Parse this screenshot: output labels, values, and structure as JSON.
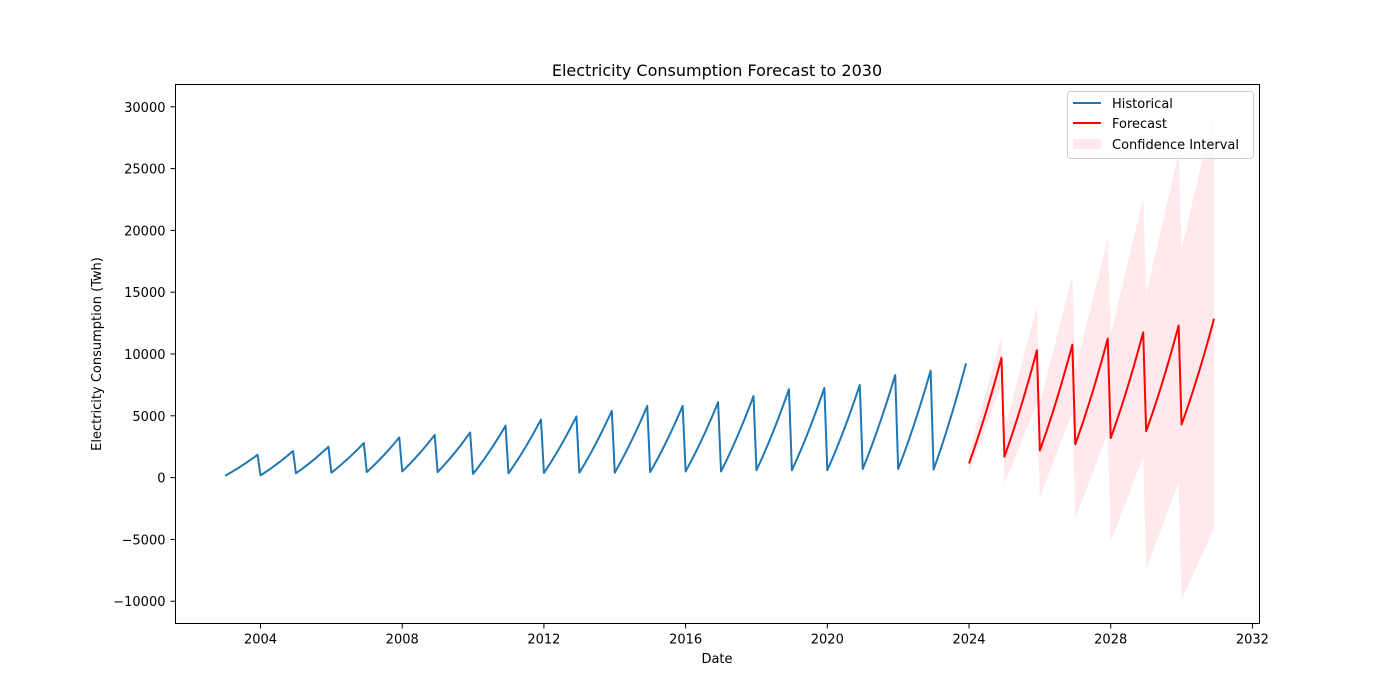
{
  "chart_data": {
    "type": "line",
    "title": "Electricity Consumption Forecast to 2030",
    "xlabel": "Date",
    "ylabel": "Electricity Consumption (Twh)",
    "xlim": [
      2001.6,
      2032.2
    ],
    "ylim": [
      -11800,
      31800
    ],
    "xticks": [
      2004,
      2008,
      2012,
      2016,
      2020,
      2024,
      2028,
      2032
    ],
    "yticks": [
      -10000,
      -5000,
      0,
      5000,
      10000,
      15000,
      20000,
      25000,
      30000
    ],
    "legend": {
      "position": "top-right",
      "entries": [
        "Historical",
        "Forecast",
        "Confidence Interval"
      ]
    },
    "grid": false,
    "colors": {
      "historical": "#1f77b4",
      "forecast": "#ff0000",
      "confidence": "#ffc0cb"
    },
    "series": [
      {
        "name": "Historical",
        "cycles": [
          {
            "start": 2003.0,
            "min": 150,
            "max": 1850
          },
          {
            "start": 2004.0,
            "min": 180,
            "max": 2150
          },
          {
            "start": 2005.0,
            "min": 350,
            "max": 2500
          },
          {
            "start": 2006.0,
            "min": 400,
            "max": 2800
          },
          {
            "start": 2007.0,
            "min": 450,
            "max": 3250
          },
          {
            "start": 2008.0,
            "min": 500,
            "max": 3450
          },
          {
            "start": 2009.0,
            "min": 450,
            "max": 3650
          },
          {
            "start": 2010.0,
            "min": 300,
            "max": 4200
          },
          {
            "start": 2011.0,
            "min": 350,
            "max": 4700
          },
          {
            "start": 2012.0,
            "min": 380,
            "max": 4950
          },
          {
            "start": 2013.0,
            "min": 400,
            "max": 5400
          },
          {
            "start": 2014.0,
            "min": 400,
            "max": 5800
          },
          {
            "start": 2015.0,
            "min": 450,
            "max": 5800
          },
          {
            "start": 2016.0,
            "min": 500,
            "max": 6100
          },
          {
            "start": 2017.0,
            "min": 500,
            "max": 6600
          },
          {
            "start": 2018.0,
            "min": 600,
            "max": 7150
          },
          {
            "start": 2019.0,
            "min": 600,
            "max": 7250
          },
          {
            "start": 2020.0,
            "min": 600,
            "max": 7500
          },
          {
            "start": 2021.0,
            "min": 700,
            "max": 8300
          },
          {
            "start": 2022.0,
            "min": 700,
            "max": 8650
          },
          {
            "start": 2023.0,
            "min": 650,
            "max": 9250
          }
        ]
      },
      {
        "name": "Forecast",
        "cycles": [
          {
            "start": 2024.0,
            "min": 1150,
            "max": 9700,
            "lower_min": 350,
            "lower_max": 7600,
            "upper_min": 2000,
            "upper_max": 11400
          },
          {
            "start": 2025.0,
            "min": 1700,
            "max": 10300,
            "lower_min": -500,
            "lower_max": 6000,
            "upper_min": 3900,
            "upper_max": 13800
          },
          {
            "start": 2026.0,
            "min": 2200,
            "max": 10750,
            "lower_min": -1600,
            "lower_max": 5300,
            "upper_min": 6000,
            "upper_max": 16300
          },
          {
            "start": 2027.0,
            "min": 2700,
            "max": 11250,
            "lower_min": -3300,
            "lower_max": 3600,
            "upper_min": 8700,
            "upper_max": 19300
          },
          {
            "start": 2028.0,
            "min": 3200,
            "max": 11750,
            "lower_min": -5200,
            "lower_max": 1700,
            "upper_min": 11600,
            "upper_max": 22600
          },
          {
            "start": 2029.0,
            "min": 3750,
            "max": 12300,
            "lower_min": -7400,
            "lower_max": -400,
            "upper_min": 14900,
            "upper_max": 26200
          },
          {
            "start": 2030.0,
            "min": 4300,
            "max": 12850,
            "lower_min": -9900,
            "lower_max": -4100,
            "upper_min": 18500,
            "upper_max": 29800
          }
        ]
      }
    ]
  }
}
